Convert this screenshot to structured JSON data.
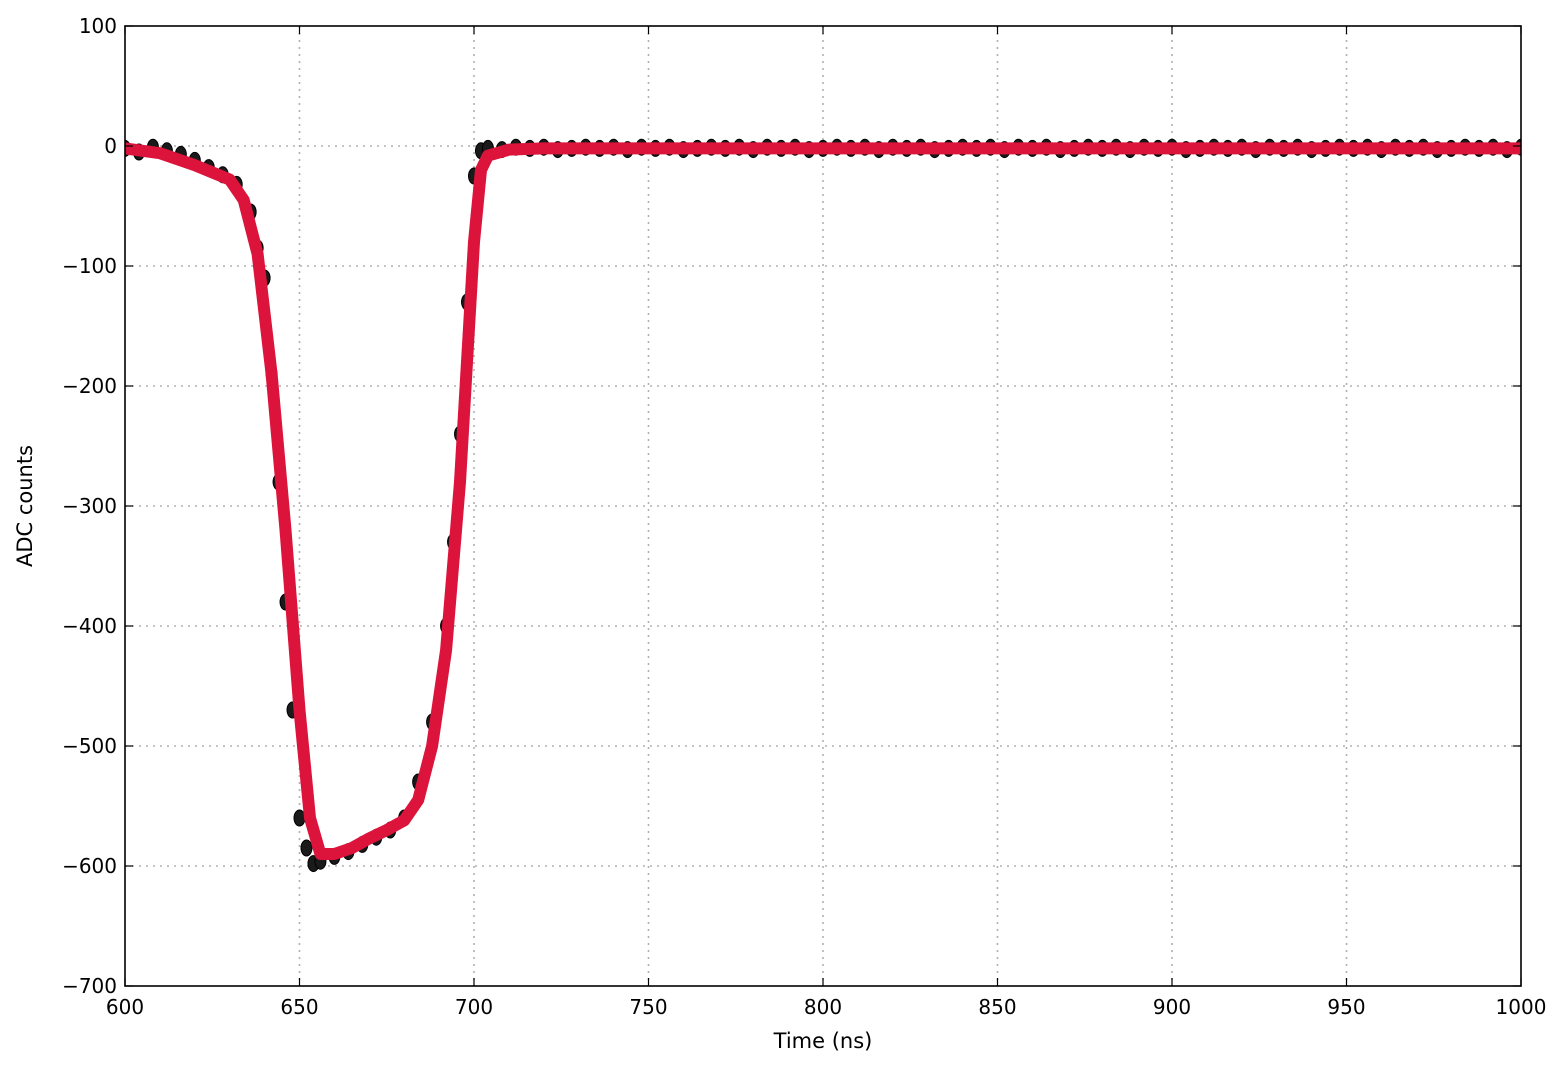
{
  "chart_data": {
    "type": "scatter",
    "title": "",
    "xlabel": "Time (ns)",
    "ylabel": "ADC counts",
    "xlim": [
      600,
      1000
    ],
    "ylim": [
      -700,
      100
    ],
    "xticks": [
      600,
      650,
      700,
      750,
      800,
      850,
      900,
      950,
      1000
    ],
    "yticks": [
      100,
      0,
      -100,
      -200,
      -300,
      -400,
      -500,
      -600,
      -700
    ],
    "xtick_labels": [
      "600",
      "650",
      "700",
      "750",
      "800",
      "850",
      "900",
      "950",
      "1000"
    ],
    "ytick_labels": [
      "100",
      "0",
      "−100",
      "−200",
      "−300",
      "−400",
      "−500",
      "−600",
      "−700"
    ],
    "grid": true,
    "series": [
      {
        "kind": "scatter",
        "color": "#1a1a1a",
        "x": [
          600,
          604,
          608,
          612,
          616,
          620,
          624,
          628,
          632,
          636,
          638,
          640,
          642,
          644,
          646,
          648,
          650,
          652,
          654,
          656,
          660,
          664,
          668,
          672,
          676,
          680,
          684,
          688,
          692,
          694,
          696,
          698,
          700,
          702,
          704,
          708,
          712,
          716,
          720,
          724,
          728,
          732,
          736,
          740,
          744,
          748,
          752,
          756,
          760,
          764,
          768,
          772,
          776,
          780,
          784,
          788,
          792,
          796,
          800,
          804,
          808,
          812,
          816,
          820,
          824,
          828,
          832,
          836,
          840,
          844,
          848,
          852,
          856,
          860,
          864,
          868,
          872,
          876,
          880,
          884,
          888,
          892,
          896,
          900,
          904,
          908,
          912,
          916,
          920,
          924,
          928,
          932,
          936,
          940,
          944,
          948,
          952,
          956,
          960,
          964,
          968,
          972,
          976,
          980,
          984,
          988,
          992,
          996,
          1000
        ],
        "y": [
          -2,
          -5,
          -1,
          -4,
          -7,
          -12,
          -18,
          -24,
          -32,
          -55,
          -85,
          -110,
          -190,
          -280,
          -380,
          -470,
          -560,
          -585,
          -598,
          -596,
          -592,
          -588,
          -582,
          -576,
          -570,
          -560,
          -530,
          -480,
          -400,
          -330,
          -240,
          -130,
          -25,
          -4,
          -2,
          -3,
          -1,
          -2,
          -1,
          -3,
          -2,
          -1,
          -2,
          -1,
          -3,
          -1,
          -2,
          -1,
          -3,
          -2,
          -1,
          -2,
          -1,
          -3,
          -1,
          -2,
          -1,
          -3,
          -2,
          -1,
          -2,
          -1,
          -3,
          -1,
          -2,
          -1,
          -3,
          -2,
          -1,
          -2,
          -1,
          -3,
          -1,
          -2,
          -1,
          -3,
          -2,
          -1,
          -2,
          -1,
          -3,
          -1,
          -2,
          -1,
          -3,
          -2,
          -1,
          -2,
          -1,
          -3,
          -1,
          -2,
          -1,
          -3,
          -2,
          -1,
          -2,
          -1,
          -3,
          -1,
          -2,
          -1,
          -3,
          -2,
          -1,
          -2,
          -1,
          -3,
          -1
        ]
      },
      {
        "kind": "line",
        "color": "#dc143c",
        "x": [
          600,
          610,
          620,
          630,
          634,
          638,
          642,
          646,
          650,
          653,
          656,
          660,
          665,
          670,
          675,
          680,
          684,
          688,
          692,
          696,
          700,
          702,
          704,
          710,
          720,
          740,
          760,
          780,
          800,
          820,
          840,
          860,
          880,
          900,
          920,
          940,
          960,
          980,
          1000
        ],
        "y": [
          -2,
          -6,
          -16,
          -28,
          -45,
          -90,
          -190,
          -320,
          -470,
          -560,
          -590,
          -590,
          -585,
          -577,
          -570,
          -562,
          -545,
          -500,
          -420,
          -280,
          -80,
          -20,
          -8,
          -3,
          -2,
          -2,
          -2,
          -2,
          -2,
          -2,
          -2,
          -2,
          -2,
          -2,
          -2,
          -2,
          -2,
          -2,
          -2
        ]
      }
    ]
  }
}
